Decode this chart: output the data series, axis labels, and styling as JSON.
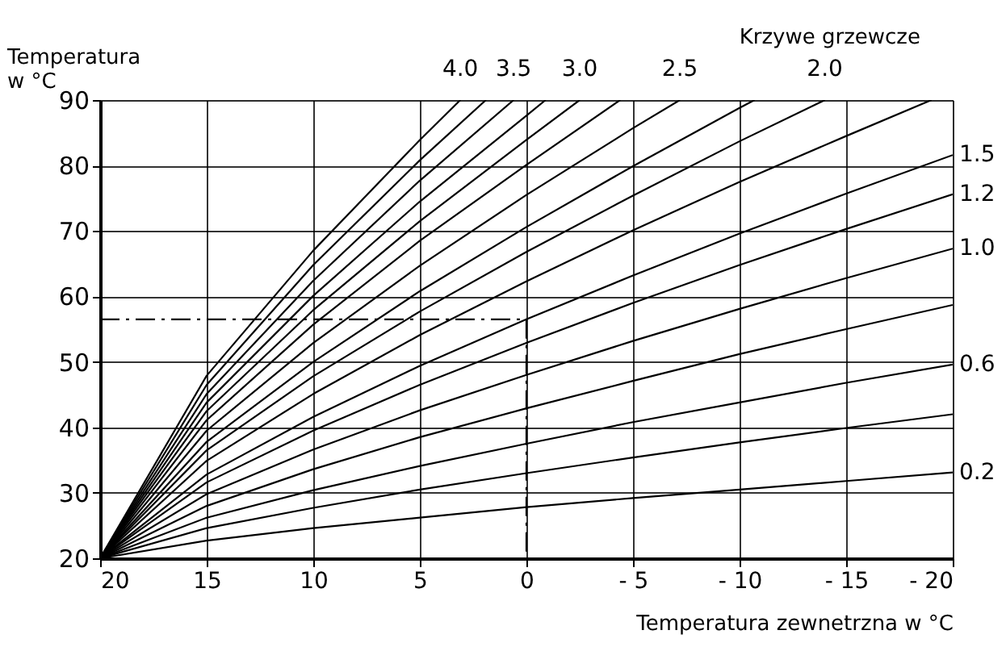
{
  "chart_data": {
    "type": "line",
    "xlabel": "Temperatura zewnetrzna w °C",
    "ylabel": "Temperatura\nw °C",
    "annotations": [
      "Krzywe grzewcze"
    ],
    "xlim": [
      20,
      -20
    ],
    "xticks": [
      20,
      15,
      10,
      5,
      0,
      {
        "value": -5,
        "label": "- 5"
      },
      {
        "value": -10,
        "label": "- 10"
      },
      {
        "value": -15,
        "label": "- 15"
      },
      {
        "value": -20,
        "label": "- 20"
      }
    ],
    "ylim": [
      20,
      90
    ],
    "yticks": [
      20,
      30,
      40,
      50,
      60,
      70,
      80,
      90
    ],
    "grid": true,
    "marker": "none",
    "series": [
      {
        "name": "4.0",
        "color": "#000000",
        "x": [
          20,
          15,
          10,
          5,
          3.1
        ],
        "values": [
          20,
          47.9,
          67.0,
          83.9,
          90
        ]
      },
      {
        "color": "#000000",
        "x": [
          20,
          15,
          10,
          5,
          1.9
        ],
        "values": [
          20,
          46.5,
          64.8,
          80.8,
          90
        ]
      },
      {
        "name": "3.5",
        "color": "#000000",
        "x": [
          20,
          15,
          10,
          5,
          0.6
        ],
        "values": [
          20,
          45.1,
          62.4,
          77.7,
          90
        ]
      },
      {
        "color": "#000000",
        "x": [
          20,
          15,
          10,
          5,
          0,
          -0.9
        ],
        "values": [
          20,
          43.8,
          60.1,
          74.5,
          87.6,
          90
        ]
      },
      {
        "name": "3.0",
        "color": "#000000",
        "x": [
          20,
          15,
          10,
          5,
          0,
          -2.5
        ],
        "values": [
          20,
          42.5,
          57.9,
          71.5,
          83.9,
          90
        ]
      },
      {
        "color": "#000000",
        "x": [
          20,
          15,
          10,
          5,
          0,
          -4.4
        ],
        "values": [
          20,
          41.1,
          55.7,
          68.5,
          80.1,
          90
        ]
      },
      {
        "name": "2.5",
        "color": "#000000",
        "x": [
          20,
          15,
          10,
          5,
          0,
          -5,
          -7.2
        ],
        "values": [
          20,
          39.5,
          52.9,
          64.7,
          75.5,
          85.7,
          90
        ]
      },
      {
        "color": "#000000",
        "x": [
          20,
          15,
          10,
          5,
          0,
          -5,
          -10,
          -10.7
        ],
        "values": [
          20,
          37.8,
          50.0,
          60.8,
          70.6,
          79.9,
          88.8,
          90
        ]
      },
      {
        "name": "2.0",
        "color": "#000000",
        "x": [
          20,
          15,
          10,
          5,
          0,
          -5,
          -10,
          -14
        ],
        "values": [
          20,
          36.5,
          47.8,
          57.7,
          66.8,
          75.4,
          83.7,
          90
        ]
      },
      {
        "color": "#000000",
        "x": [
          20,
          15,
          10,
          5,
          0,
          -5,
          -10,
          -15,
          -19
        ],
        "values": [
          20,
          34.9,
          45.1,
          54.1,
          62.3,
          70.1,
          77.5,
          84.5,
          90
        ]
      },
      {
        "name": "1.5",
        "color": "#000000",
        "x": [
          20,
          15,
          10,
          5,
          0,
          -5,
          -10,
          -15,
          -20
        ],
        "values": [
          20,
          32.8,
          41.6,
          49.4,
          56.5,
          63.2,
          69.6,
          75.7,
          81.6
        ]
      },
      {
        "name": "1.2",
        "color": "#000000",
        "x": [
          20,
          15,
          10,
          5,
          0,
          -5,
          -10,
          -15,
          -20
        ],
        "values": [
          20,
          31.6,
          39.5,
          46.5,
          52.9,
          59.0,
          64.8,
          70.3,
          75.6
        ]
      },
      {
        "name": "1.0",
        "color": "#000000",
        "x": [
          20,
          15,
          10,
          5,
          0,
          -5,
          -10,
          -15,
          -20
        ],
        "values": [
          20,
          29.8,
          36.6,
          42.6,
          48.0,
          53.2,
          58.1,
          62.8,
          67.3
        ]
      },
      {
        "color": "#000000",
        "x": [
          20,
          15,
          10,
          5,
          0,
          -5,
          -10,
          -15,
          -20
        ],
        "values": [
          20,
          28.0,
          33.6,
          38.5,
          42.9,
          47.1,
          51.2,
          55.0,
          58.7
        ]
      },
      {
        "name": "0.6",
        "color": "#000000",
        "x": [
          20,
          15,
          10,
          5,
          0,
          -5,
          -10,
          -15,
          -20
        ],
        "values": [
          20,
          26.2,
          30.4,
          34.1,
          37.5,
          40.8,
          43.8,
          46.8,
          49.6
        ]
      },
      {
        "color": "#000000",
        "x": [
          20,
          15,
          10,
          5,
          0,
          -5,
          -10,
          -15,
          -20
        ],
        "values": [
          20,
          24.6,
          27.7,
          30.5,
          33.0,
          35.4,
          37.7,
          39.9,
          42.0
        ]
      },
      {
        "name": "0.2",
        "color": "#000000",
        "x": [
          20,
          15,
          10,
          5,
          0,
          -5,
          -10,
          -15,
          -20
        ],
        "values": [
          20,
          22.7,
          24.6,
          26.2,
          27.8,
          29.2,
          30.5,
          31.8,
          33.1
        ]
      },
      {
        "color": "#000000",
        "line_style": "dashed",
        "x": [
          20,
          0,
          0
        ],
        "values": [
          56.5,
          56.5,
          20
        ]
      }
    ]
  }
}
